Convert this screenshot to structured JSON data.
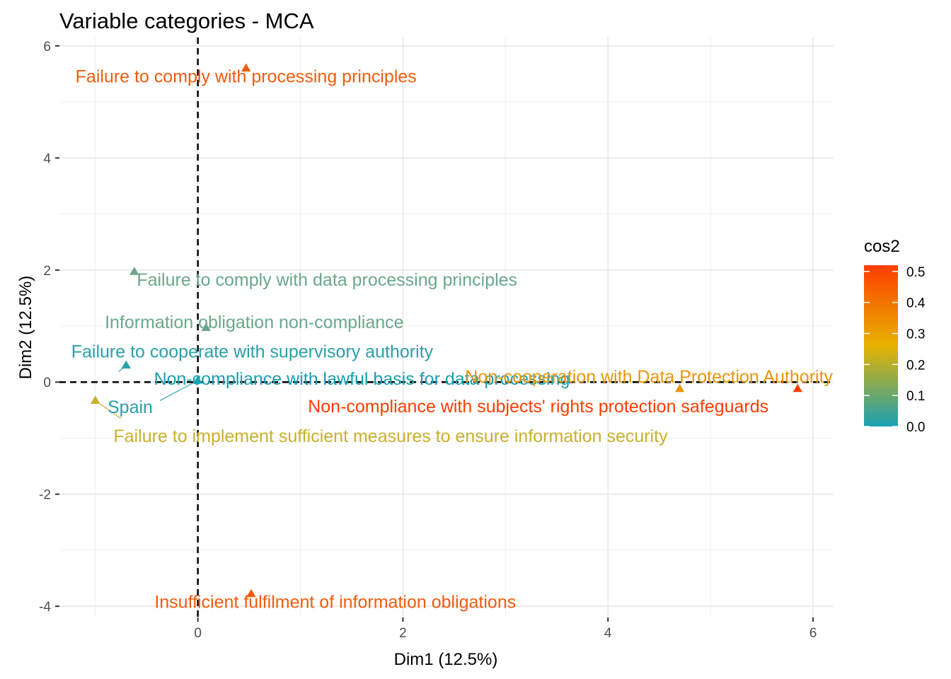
{
  "chart_data": {
    "type": "scatter",
    "title": "Variable categories - MCA",
    "xlabel": "Dim1 (12.5%)",
    "ylabel": "Dim2 (12.5%)",
    "xlim": [
      -1.35,
      6.2
    ],
    "ylim": [
      -4.2,
      6.15
    ],
    "x_ticks": [
      0,
      2,
      4,
      6
    ],
    "y_ticks": [
      -4,
      -2,
      0,
      2,
      4,
      6
    ],
    "grid": true,
    "reference_lines": {
      "x": 0,
      "y": 0,
      "style": "dashed"
    },
    "legend": {
      "title": "cos2",
      "position": "right",
      "range": [
        0.0,
        0.52
      ],
      "ticks": [
        "0.0",
        "0.1",
        "0.2",
        "0.3",
        "0.4",
        "0.5"
      ],
      "colors": [
        "#1aa0b2",
        "#e6b300",
        "#ff3d00"
      ]
    },
    "points": [
      {
        "label": "Failure to comply with processing principles",
        "x": 0.47,
        "y": 5.6,
        "cos2": 0.43,
        "color": "#f25c0d",
        "label_x": 0.47,
        "label_y": 5.35
      },
      {
        "label": "Failure to comply with data processing principles",
        "x": -0.62,
        "y": 1.97,
        "cos2": 0.12,
        "color": "#6aa88a",
        "label_x": 1.26,
        "label_y": 1.72
      },
      {
        "label": "Information obligation non-compliance",
        "x": 0.08,
        "y": 0.97,
        "cos2": 0.1,
        "color": "#6aa88a",
        "label_x": 0.55,
        "label_y": 0.96
      },
      {
        "label": "Failure to cooperate with supervisory authority",
        "x": -0.7,
        "y": 0.3,
        "cos2": 0.04,
        "color": "#2aa0a8",
        "label_x": 0.53,
        "label_y": 0.44
      },
      {
        "label": "Non-compliance with lawful basis for data processing",
        "x": 0.0,
        "y": 0.03,
        "cos2": 0.0,
        "color": "#1aa0b2",
        "label_x": 1.6,
        "label_y": -0.05
      },
      {
        "label": "Non-cooperation with Data Protection Authority",
        "x": 4.7,
        "y": -0.12,
        "cos2": 0.33,
        "color": "#e8960a",
        "label_x": 4.4,
        "label_y": -0.01
      },
      {
        "label": "Non-compliance with subjects' rights protection safeguards",
        "x": 5.85,
        "y": -0.12,
        "cos2": 0.52,
        "color": "#ff3d00",
        "label_x": 3.32,
        "label_y": -0.54
      },
      {
        "label": "Spain",
        "x": -1.0,
        "y": -0.33,
        "cos2": 0.03,
        "color": "#2aa0a8",
        "label_x": -0.66,
        "label_y": -0.55
      },
      {
        "label": "Failure to implement sufficient measures to ensure information security",
        "x": -1.0,
        "y": -0.33,
        "cos2": 0.18,
        "color": "#c9b02e",
        "label_x": 1.88,
        "label_y": -1.07
      },
      {
        "label": "Insufficient fulfilment of information obligations",
        "x": 0.52,
        "y": -3.78,
        "cos2": 0.43,
        "color": "#f25c0d",
        "label_x": 1.34,
        "label_y": -4.03
      }
    ],
    "leader_lines": [
      {
        "from": [
          -0.7,
          0.3
        ],
        "to": [
          -0.77,
          0.19
        ],
        "color": "#2aa0a8"
      },
      {
        "from": [
          0.0,
          0.03
        ],
        "to": [
          -0.37,
          -0.33
        ],
        "color": "#2aa0a8"
      },
      {
        "from": [
          -1.0,
          -0.33
        ],
        "to": [
          -0.75,
          -0.65
        ],
        "color": "#c9b02e"
      }
    ]
  }
}
